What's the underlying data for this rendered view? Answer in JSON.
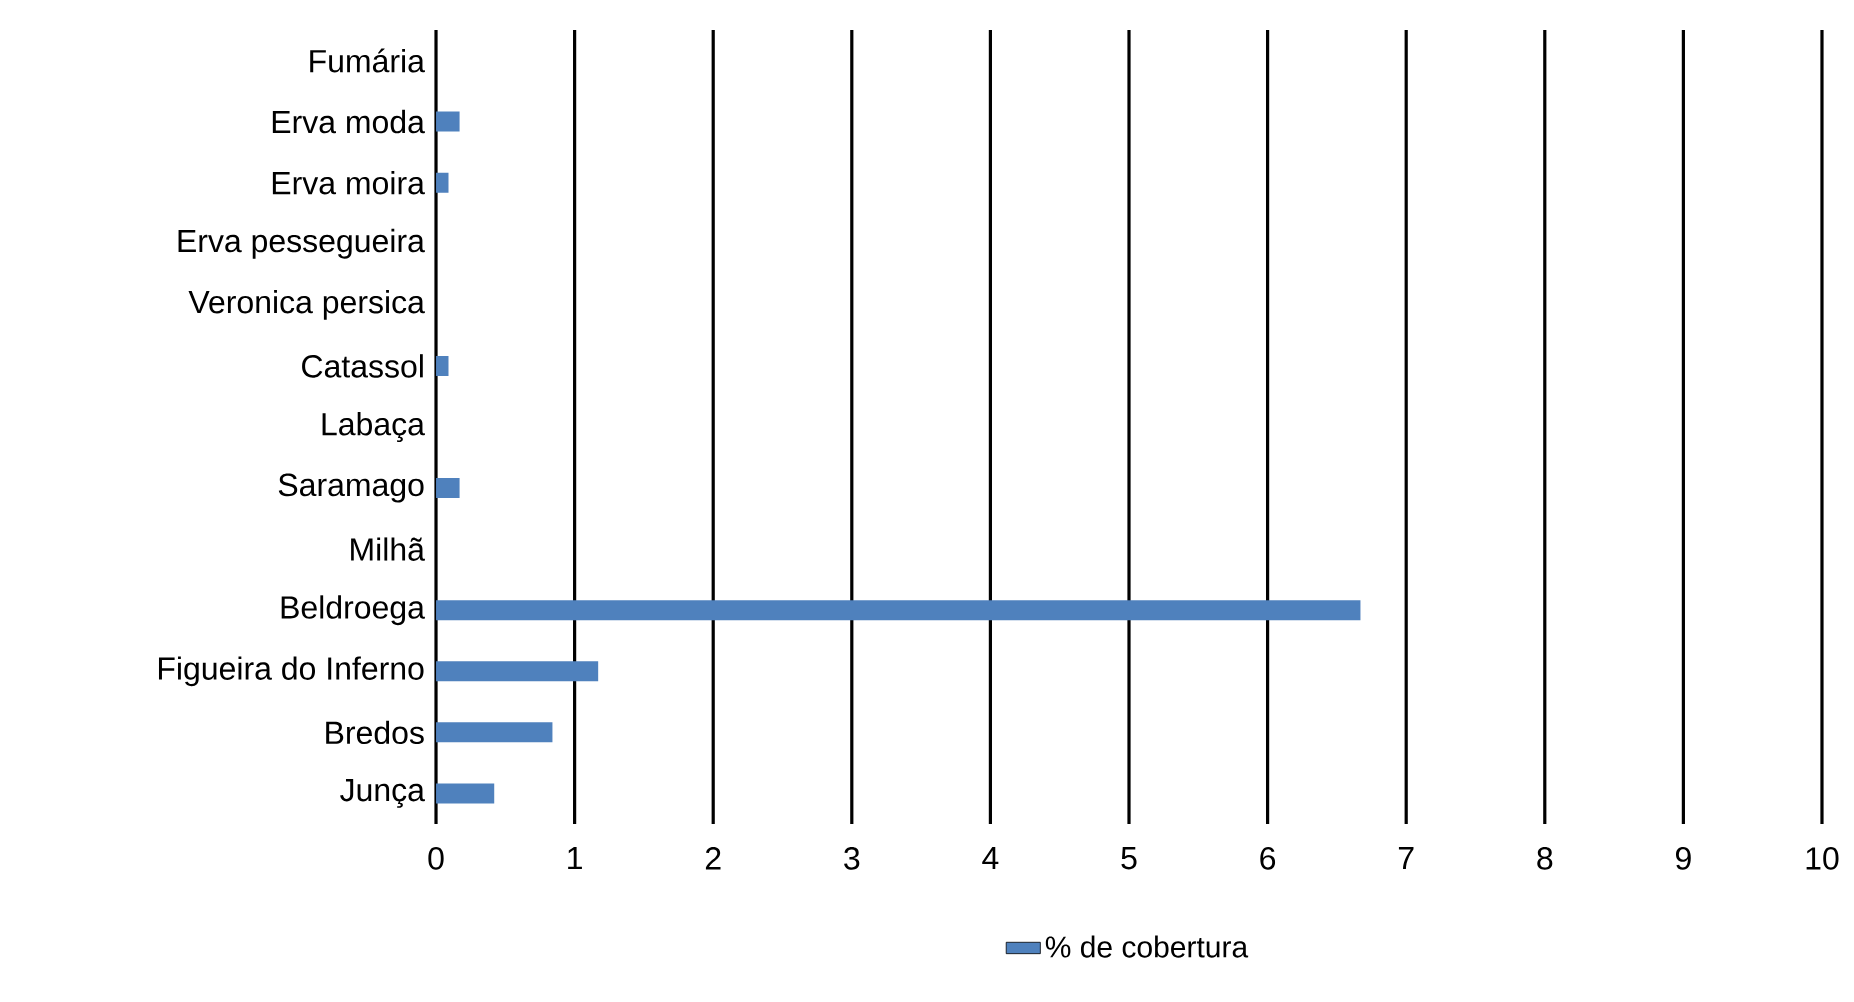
{
  "chart_data": {
    "type": "bar",
    "orientation": "horizontal",
    "categories": [
      "Fumária",
      "Erva moda",
      "Erva moira",
      "Erva pessegueira",
      "Veronica persica",
      "Catassol",
      "Labaça",
      "Saramago",
      "Milhã",
      "Beldroega",
      "Figueira do Inferno",
      "Bredos",
      "Junça"
    ],
    "series": [
      {
        "name": "% de cobertura",
        "color": "#4f81bd",
        "values": [
          0,
          0.17,
          0.09,
          0,
          0,
          0.09,
          0,
          0.17,
          0,
          6.67,
          1.17,
          0.84,
          0.42
        ]
      }
    ],
    "xlim": [
      0,
      10
    ],
    "xticks": [
      0,
      1,
      2,
      3,
      4,
      5,
      6,
      7,
      8,
      9,
      10
    ],
    "grid": "x",
    "legend": "bottom"
  }
}
